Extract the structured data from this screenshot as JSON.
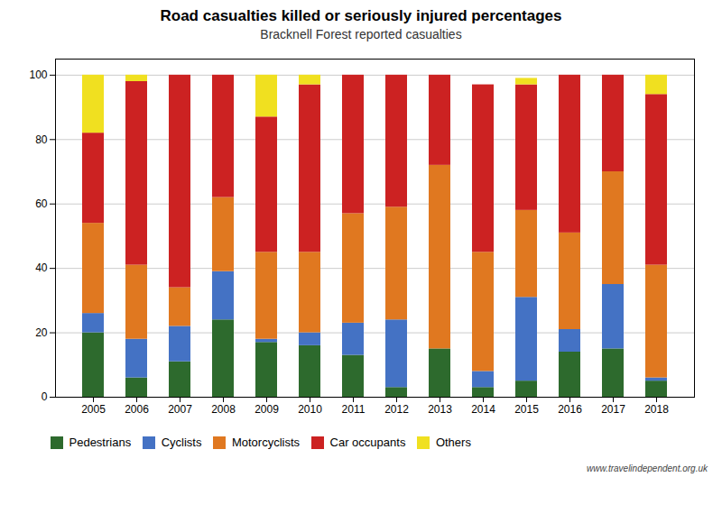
{
  "chart_data": {
    "type": "bar",
    "title": "Road casualties killed or seriously injured percentages",
    "subtitle": "Bracknell Forest reported casualties",
    "categories": [
      "2005",
      "2006",
      "2007",
      "2008",
      "2009",
      "2010",
      "2011",
      "2012",
      "2013",
      "2014",
      "2015",
      "2016",
      "2017",
      "2018"
    ],
    "series": [
      {
        "name": "Pedestrians",
        "color": "#2d6a2d",
        "values": [
          20,
          6,
          11,
          24,
          17,
          16,
          13,
          3,
          15,
          3,
          5,
          14,
          15,
          5
        ]
      },
      {
        "name": "Cyclists",
        "color": "#4472c4",
        "values": [
          6,
          12,
          11,
          15,
          1,
          4,
          10,
          21,
          0,
          5,
          26,
          7,
          20,
          1
        ]
      },
      {
        "name": "Motorcyclists",
        "color": "#e07820",
        "values": [
          28,
          23,
          12,
          23,
          27,
          25,
          34,
          35,
          57,
          37,
          27,
          30,
          35,
          35
        ]
      },
      {
        "name": "Car occupants",
        "color": "#cc2222",
        "values": [
          28,
          57,
          66,
          38,
          42,
          52,
          43,
          41,
          28,
          52,
          39,
          49,
          30,
          53
        ]
      },
      {
        "name": "Others",
        "color": "#f0e020",
        "values": [
          18,
          2,
          0,
          0,
          13,
          3,
          0,
          0,
          0,
          0,
          2,
          0,
          0,
          6
        ]
      }
    ],
    "stacked": true,
    "ylim": [
      0,
      105
    ],
    "yticks": [
      0,
      20,
      40,
      60,
      80,
      100
    ],
    "grid": true,
    "legend": "bottom",
    "annotations": [
      "www.travelindependent.org.uk"
    ]
  }
}
